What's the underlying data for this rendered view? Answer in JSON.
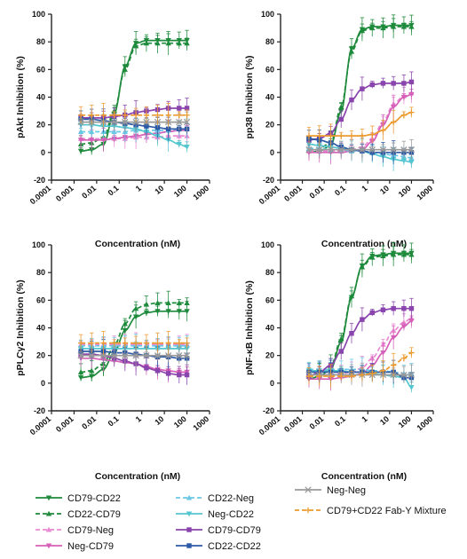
{
  "chart_data": [
    {
      "type": "line",
      "ylabel": "pAkt Inhibition (%)",
      "xlabel": "Concentration (nM)",
      "xscale": "log",
      "xlim": [
        0.0001,
        1000
      ],
      "ylim": [
        -20,
        100
      ],
      "x_ticks": [
        "0.0001",
        "0.001",
        "0.01",
        "0.1",
        "1",
        "10",
        "100",
        "1000"
      ],
      "y_ticks": [
        "-20",
        "0",
        "20",
        "40",
        "60",
        "80",
        "100"
      ],
      "x": [
        0.002,
        0.006,
        0.02,
        0.06,
        0.18,
        0.55,
        1.6,
        5,
        15,
        45,
        100
      ],
      "series": [
        {
          "name": "CD79-CD22",
          "color": "#1e8a3c",
          "dash": "solid",
          "marker": "triangle-down",
          "values": [
            1,
            2,
            6,
            28,
            62,
            79,
            81,
            81,
            81,
            81,
            81
          ]
        },
        {
          "name": "CD22-CD79",
          "color": "#1e8a3c",
          "dash": "dashed",
          "marker": "triangle-up",
          "values": [
            6,
            7,
            11,
            30,
            60,
            77,
            79,
            79,
            79,
            79,
            79
          ]
        },
        {
          "name": "CD79-Neg",
          "color": "#e98ad2",
          "dash": "dashed",
          "marker": "triangle-up",
          "values": [
            10,
            10,
            10,
            10,
            10,
            11,
            11,
            11,
            12,
            12,
            12
          ]
        },
        {
          "name": "Neg-CD79",
          "color": "#d65fb8",
          "dash": "solid",
          "marker": "triangle-down",
          "values": [
            9,
            9,
            9,
            10,
            11,
            12,
            13,
            14,
            15,
            16,
            16
          ]
        },
        {
          "name": "CD22-Neg",
          "color": "#6ac8e6",
          "dash": "dashed",
          "marker": "triangle-up",
          "values": [
            15,
            15,
            15,
            15,
            15,
            16,
            16,
            16,
            16,
            17,
            17
          ]
        },
        {
          "name": "Neg-CD22",
          "color": "#54c6d0",
          "dash": "solid",
          "marker": "triangle-down",
          "values": [
            20,
            20,
            19,
            19,
            18,
            17,
            15,
            12,
            9,
            6,
            4
          ]
        },
        {
          "name": "CD79-CD79",
          "color": "#8a44ad",
          "dash": "solid",
          "marker": "square",
          "values": [
            25,
            25,
            25,
            26,
            27,
            29,
            30,
            31,
            32,
            32,
            32
          ]
        },
        {
          "name": "CD22-CD22",
          "color": "#2c5aa6",
          "dash": "solid",
          "marker": "square",
          "values": [
            24,
            24,
            23,
            22,
            21,
            20,
            19,
            18,
            17,
            17,
            17
          ]
        },
        {
          "name": "Neg-Neg",
          "color": "#9a9a9a",
          "dash": "solid",
          "marker": "x",
          "values": [
            22,
            22,
            22,
            22,
            22,
            22,
            22,
            22,
            22,
            22,
            22
          ]
        },
        {
          "name": "CD79+CD22 Fab-Y Mixture",
          "color": "#ec9a2e",
          "dash": "dashed",
          "marker": "plus",
          "values": [
            27,
            27,
            27,
            27,
            27,
            27,
            27,
            27,
            27,
            27,
            27
          ]
        }
      ]
    },
    {
      "type": "line",
      "ylabel": "pp38 Inhibition (%)",
      "xlabel": "Concentration (nM)",
      "xscale": "log",
      "xlim": [
        0.0001,
        1000
      ],
      "ylim": [
        -20,
        100
      ],
      "x_ticks": [
        "0.0001",
        "0.001",
        "0.01",
        "0.1",
        "1",
        "10",
        "100",
        "1000"
      ],
      "y_ticks": [
        "-20",
        "0",
        "20",
        "40",
        "60",
        "80",
        "100"
      ],
      "x": [
        0.002,
        0.006,
        0.02,
        0.06,
        0.18,
        0.55,
        1.6,
        5,
        15,
        45,
        100
      ],
      "series": [
        {
          "name": "CD79-CD22",
          "color": "#1e8a3c",
          "dash": "solid",
          "marker": "triangle-down",
          "values": [
            0,
            1,
            5,
            30,
            75,
            89,
            91,
            91,
            92,
            92,
            92
          ]
        },
        {
          "name": "CD22-CD79",
          "color": "#1e8a3c",
          "dash": "dashed",
          "marker": "triangle-up",
          "values": [
            2,
            3,
            7,
            33,
            73,
            88,
            90,
            90,
            91,
            91,
            91
          ]
        },
        {
          "name": "CD79-Neg",
          "color": "#e98ad2",
          "dash": "dashed",
          "marker": "triangle-up",
          "values": [
            1,
            1,
            1,
            1,
            2,
            4,
            10,
            22,
            35,
            41,
            43
          ]
        },
        {
          "name": "Neg-CD79",
          "color": "#d65fb8",
          "dash": "solid",
          "marker": "triangle-down",
          "values": [
            0,
            0,
            0,
            0,
            1,
            2,
            8,
            20,
            33,
            40,
            42
          ]
        },
        {
          "name": "CD22-Neg",
          "color": "#6ac8e6",
          "dash": "dashed",
          "marker": "triangle-up",
          "values": [
            3,
            3,
            2,
            2,
            1,
            1,
            0,
            -1,
            -2,
            -3,
            -4
          ]
        },
        {
          "name": "Neg-CD22",
          "color": "#54c6d0",
          "dash": "solid",
          "marker": "triangle-down",
          "values": [
            6,
            5,
            4,
            3,
            2,
            1,
            -1,
            -3,
            -5,
            -6,
            -7
          ]
        },
        {
          "name": "CD79-CD79",
          "color": "#8a44ad",
          "dash": "solid",
          "marker": "square",
          "values": [
            9,
            10,
            14,
            24,
            38,
            46,
            49,
            50,
            50,
            50,
            51
          ]
        },
        {
          "name": "CD22-CD22",
          "color": "#2c5aa6",
          "dash": "solid",
          "marker": "square",
          "values": [
            10,
            9,
            7,
            4,
            2,
            1,
            0,
            0,
            0,
            0,
            0
          ]
        },
        {
          "name": "Neg-Neg",
          "color": "#9a9a9a",
          "dash": "solid",
          "marker": "x",
          "values": [
            2,
            2,
            2,
            2,
            2,
            2,
            2,
            2,
            2,
            2,
            2
          ]
        },
        {
          "name": "CD79+CD22 Fab-Y Mixture",
          "color": "#ec9a2e",
          "dash": "solid",
          "marker": "plus",
          "values": [
            12,
            12,
            12,
            12,
            12,
            12,
            13,
            16,
            22,
            27,
            29
          ]
        }
      ]
    },
    {
      "type": "line",
      "ylabel": "pPLCγ2 Inhibition (%)",
      "xlabel": "Concentration (nM)",
      "xscale": "log",
      "xlim": [
        0.0001,
        1000
      ],
      "ylim": [
        -20,
        100
      ],
      "x_ticks": [
        "0.0001",
        "0.001",
        "0.01",
        "0.1",
        "1",
        "10",
        "100",
        "1000"
      ],
      "y_ticks": [
        "-20",
        "0",
        "20",
        "40",
        "60",
        "80",
        "100"
      ],
      "x": [
        0.002,
        0.006,
        0.02,
        0.06,
        0.18,
        0.55,
        1.6,
        5,
        15,
        45,
        100
      ],
      "series": [
        {
          "name": "CD79-CD22",
          "color": "#1e8a3c",
          "dash": "solid",
          "marker": "triangle-down",
          "values": [
            4,
            5,
            10,
            22,
            38,
            48,
            51,
            52,
            52,
            52,
            52
          ]
        },
        {
          "name": "CD22-CD79",
          "color": "#1e8a3c",
          "dash": "dashed",
          "marker": "triangle-up",
          "values": [
            8,
            9,
            14,
            27,
            43,
            54,
            57,
            58,
            58,
            58,
            58
          ]
        },
        {
          "name": "CD79-Neg",
          "color": "#e98ad2",
          "dash": "dashed",
          "marker": "triangle-up",
          "values": [
            28,
            28,
            28,
            28,
            28,
            28,
            28,
            28,
            28,
            28,
            28
          ]
        },
        {
          "name": "Neg-CD79",
          "color": "#d65fb8",
          "dash": "solid",
          "marker": "triangle-down",
          "values": [
            18,
            18,
            17,
            16,
            15,
            14,
            12,
            10,
            9,
            8,
            8
          ]
        },
        {
          "name": "CD22-Neg",
          "color": "#6ac8e6",
          "dash": "dashed",
          "marker": "triangle-up",
          "values": [
            27,
            27,
            27,
            27,
            27,
            27,
            27,
            27,
            27,
            27,
            27
          ]
        },
        {
          "name": "Neg-CD22",
          "color": "#54c6d0",
          "dash": "solid",
          "marker": "triangle-down",
          "values": [
            25,
            25,
            25,
            25,
            25,
            25,
            25,
            25,
            25,
            25,
            25
          ]
        },
        {
          "name": "CD79-CD79",
          "color": "#8a44ad",
          "dash": "solid",
          "marker": "square",
          "values": [
            21,
            21,
            20,
            18,
            16,
            14,
            11,
            9,
            7,
            6,
            6
          ]
        },
        {
          "name": "CD22-CD22",
          "color": "#2c5aa6",
          "dash": "solid",
          "marker": "square",
          "values": [
            23,
            23,
            23,
            22,
            22,
            21,
            20,
            19,
            19,
            18,
            18
          ]
        },
        {
          "name": "Neg-Neg",
          "color": "#9a9a9a",
          "dash": "solid",
          "marker": "x",
          "values": [
            20,
            20,
            20,
            20,
            20,
            20,
            20,
            20,
            20,
            20,
            20
          ]
        },
        {
          "name": "CD79+CD22 Fab-Y Mixture",
          "color": "#ec9a2e",
          "dash": "dashed",
          "marker": "plus",
          "values": [
            29,
            29,
            29,
            29,
            29,
            29,
            29,
            29,
            29,
            29,
            29
          ]
        }
      ]
    },
    {
      "type": "line",
      "ylabel": "pNF-κB Inhibition (%)",
      "xlabel": "Concentration (nM)",
      "xscale": "log",
      "xlim": [
        0.0001,
        1000
      ],
      "ylim": [
        -20,
        100
      ],
      "x_ticks": [
        "0.0001",
        "0.001",
        "0.01",
        "0.1",
        "1",
        "10",
        "100",
        "1000"
      ],
      "y_ticks": [
        "-20",
        "0",
        "20",
        "40",
        "60",
        "80",
        "100"
      ],
      "x": [
        0.002,
        0.006,
        0.02,
        0.06,
        0.18,
        0.55,
        1.6,
        5,
        15,
        45,
        100
      ],
      "series": [
        {
          "name": "CD79-CD22",
          "color": "#1e8a3c",
          "dash": "solid",
          "marker": "triangle-down",
          "values": [
            3,
            5,
            10,
            30,
            62,
            85,
            92,
            93,
            94,
            94,
            94
          ]
        },
        {
          "name": "CD22-CD79",
          "color": "#1e8a3c",
          "dash": "dashed",
          "marker": "triangle-up",
          "values": [
            5,
            7,
            12,
            32,
            63,
            84,
            91,
            92,
            93,
            93,
            93
          ]
        },
        {
          "name": "CD79-Neg",
          "color": "#e98ad2",
          "dash": "dashed",
          "marker": "triangle-up",
          "values": [
            6,
            6,
            6,
            7,
            8,
            11,
            18,
            28,
            38,
            44,
            47
          ]
        },
        {
          "name": "Neg-CD79",
          "color": "#d65fb8",
          "dash": "solid",
          "marker": "triangle-down",
          "values": [
            3,
            3,
            3,
            4,
            5,
            7,
            13,
            22,
            33,
            41,
            45
          ]
        },
        {
          "name": "CD22-Neg",
          "color": "#6ac8e6",
          "dash": "dashed",
          "marker": "triangle-up",
          "values": [
            10,
            10,
            10,
            10,
            10,
            10,
            9,
            9,
            8,
            7,
            7
          ]
        },
        {
          "name": "Neg-CD22",
          "color": "#54c6d0",
          "dash": "solid",
          "marker": "triangle-down",
          "values": [
            9,
            9,
            9,
            9,
            8,
            8,
            7,
            6,
            5,
            4,
            -3
          ]
        },
        {
          "name": "CD79-CD79",
          "color": "#8a44ad",
          "dash": "solid",
          "marker": "square",
          "values": [
            5,
            8,
            13,
            23,
            36,
            46,
            51,
            53,
            54,
            54,
            54
          ]
        },
        {
          "name": "CD22-CD22",
          "color": "#2c5aa6",
          "dash": "solid",
          "marker": "square",
          "values": [
            8,
            8,
            8,
            8,
            8,
            8,
            8,
            8,
            8,
            4,
            4
          ]
        },
        {
          "name": "Neg-Neg",
          "color": "#9a9a9a",
          "dash": "solid",
          "marker": "x",
          "values": [
            6,
            6,
            6,
            6,
            6,
            6,
            6,
            6,
            6,
            6,
            6
          ]
        },
        {
          "name": "CD79+CD22 Fab-Y Mixture",
          "color": "#ec9a2e",
          "dash": "dashed",
          "marker": "plus",
          "values": [
            5,
            5,
            5,
            5,
            5,
            6,
            7,
            9,
            13,
            18,
            22
          ]
        }
      ]
    }
  ],
  "legend": {
    "placement": "bottom",
    "items": [
      {
        "label": "CD79-CD22",
        "color": "#1e8a3c",
        "dash": "solid",
        "marker": "triangle-down"
      },
      {
        "label": "CD22-CD79",
        "color": "#1e8a3c",
        "dash": "dashed",
        "marker": "triangle-up"
      },
      {
        "label": "CD79-Neg",
        "color": "#e98ad2",
        "dash": "dashed",
        "marker": "triangle-up"
      },
      {
        "label": "Neg-CD79",
        "color": "#d65fb8",
        "dash": "solid",
        "marker": "triangle-down"
      },
      {
        "label": "CD22-Neg",
        "color": "#6ac8e6",
        "dash": "dashed",
        "marker": "triangle-up"
      },
      {
        "label": "Neg-CD22",
        "color": "#54c6d0",
        "dash": "solid",
        "marker": "triangle-down"
      },
      {
        "label": "CD79-CD79",
        "color": "#8a44ad",
        "dash": "solid",
        "marker": "square"
      },
      {
        "label": "CD22-CD22",
        "color": "#2c5aa6",
        "dash": "solid",
        "marker": "square"
      },
      {
        "label": "Neg-Neg",
        "color": "#9a9a9a",
        "dash": "solid",
        "marker": "x"
      },
      {
        "label": "CD79+CD22 Fab-Y Mixture",
        "color": "#ec9a2e",
        "dash": "dashed",
        "marker": "plus"
      }
    ]
  }
}
